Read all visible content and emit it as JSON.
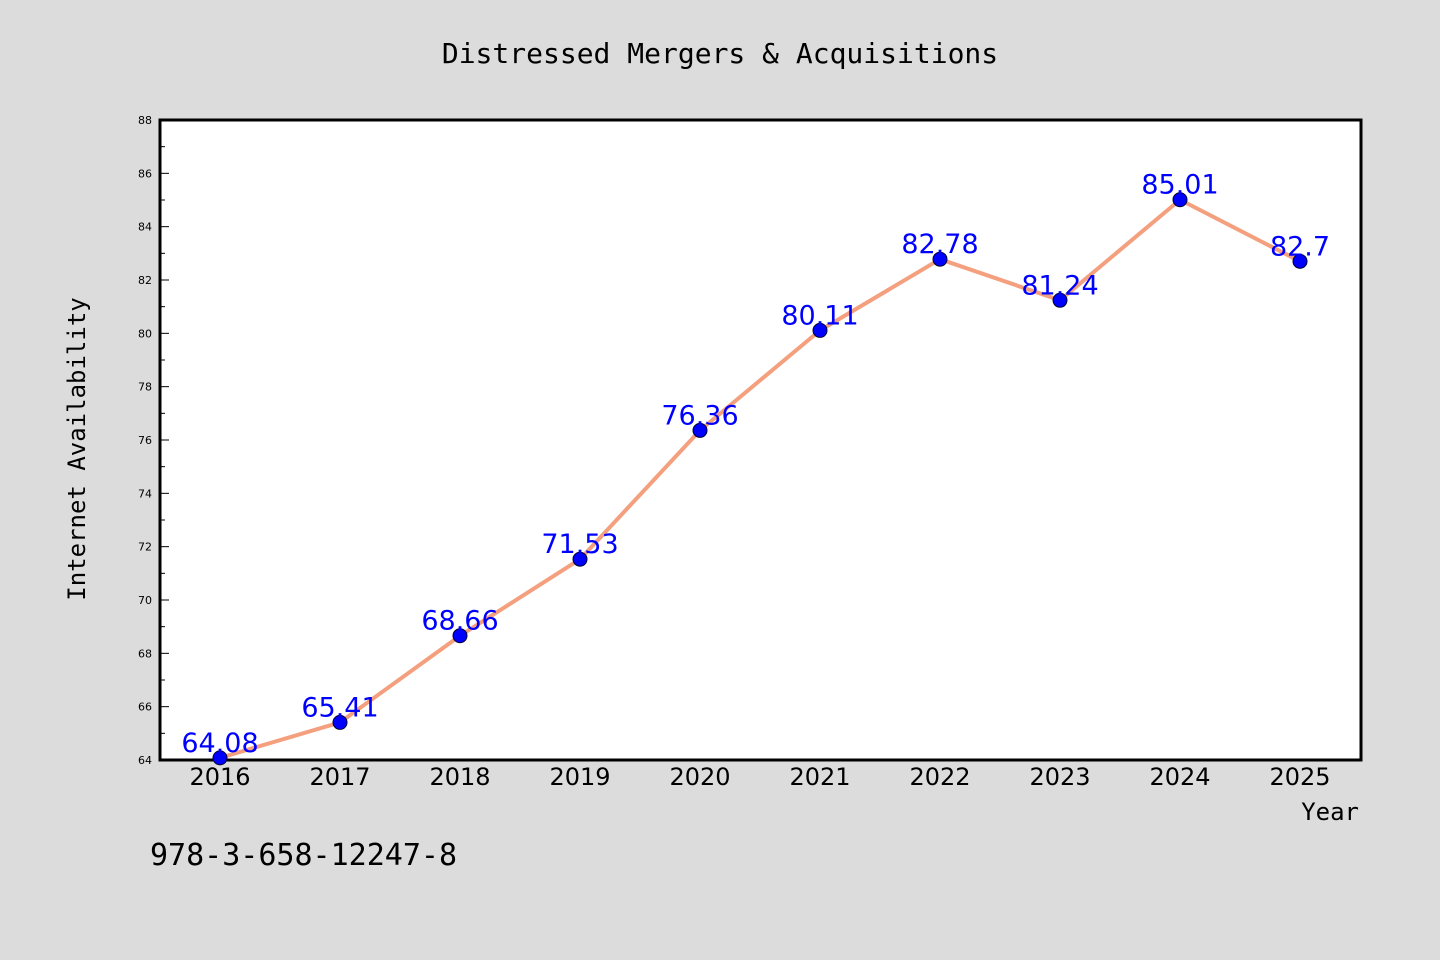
{
  "chart_data": {
    "type": "line",
    "title": "Distressed Mergers & Acquisitions",
    "xlabel": "Year",
    "ylabel": "Internet Availability",
    "categories": [
      "2016",
      "2017",
      "2018",
      "2019",
      "2020",
      "2021",
      "2022",
      "2023",
      "2024",
      "2025"
    ],
    "series": [
      {
        "values": [
          64.08,
          65.41,
          68.66,
          71.53,
          76.36,
          80.11,
          82.78,
          81.24,
          85.01,
          82.7
        ],
        "labels": [
          "64.08",
          "65.41",
          "68.66",
          "71.53",
          "76.36",
          "80.11",
          "82.78",
          "81.24",
          "85.01",
          "82.7"
        ]
      }
    ],
    "ylim": [
      64,
      88
    ],
    "yticks": [
      "64",
      "66",
      "68",
      "70",
      "72",
      "74",
      "76",
      "78",
      "80",
      "82",
      "84",
      "86",
      "88"
    ],
    "grid": false,
    "legend": "none",
    "colors": {
      "line": "#f4a07e",
      "marker": "#0000ff",
      "data_label": "#0000ff",
      "background": "#dcdcdc",
      "plot_background": "#ffffff"
    }
  },
  "footer_text": "978-3-658-12247-8"
}
